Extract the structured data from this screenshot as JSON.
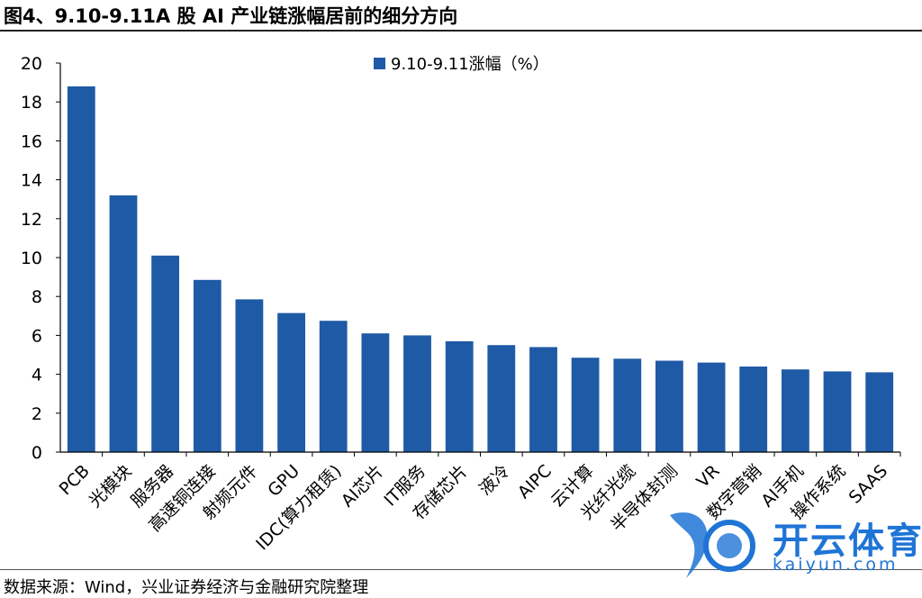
{
  "header": {
    "title": "图4、9.10-9.11A 股 AI 产业链涨幅居前的细分方向"
  },
  "chart_data": {
    "type": "bar",
    "title": "",
    "xlabel": "",
    "ylabel": "",
    "ylim": [
      0,
      20
    ],
    "yticks": [
      0,
      2,
      4,
      6,
      8,
      10,
      12,
      14,
      16,
      18,
      20
    ],
    "legend_position": "top-center",
    "bar_color": "#1f5aa6",
    "series": [
      {
        "name": "9.10-9.11涨幅（%）",
        "values": [
          18.8,
          13.2,
          10.1,
          8.85,
          7.85,
          7.15,
          6.75,
          6.1,
          6.0,
          5.7,
          5.5,
          5.4,
          4.85,
          4.8,
          4.7,
          4.6,
          4.4,
          4.25,
          4.15,
          4.1
        ]
      }
    ],
    "categories": [
      "PCB",
      "光模块",
      "服务器",
      "高速铜连接",
      "射频元件",
      "GPU",
      "IDC(算力租赁)",
      "AI芯片",
      "IT服务",
      "存储芯片",
      "液冷",
      "AIPC",
      "云计算",
      "光纤光缆",
      "半导体封测",
      "VR",
      "数字营销",
      "AI手机",
      "操作系统",
      "SAAS"
    ]
  },
  "footer": {
    "source": "数据来源：Wind，兴业证券经济与金融研究院整理"
  },
  "watermark": {
    "brand": "开云体育",
    "domain": "kaiyun.com",
    "color": "#1f74d6"
  }
}
